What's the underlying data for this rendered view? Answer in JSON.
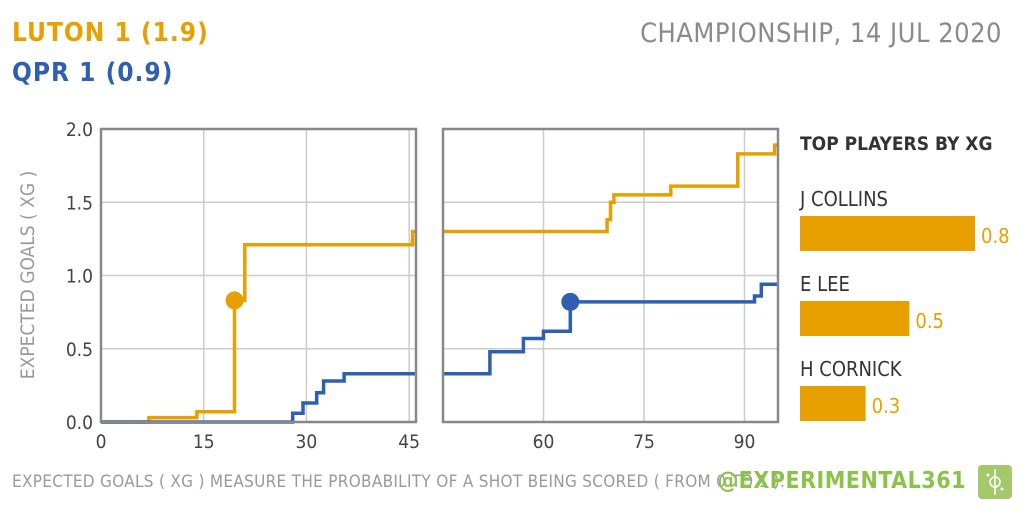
{
  "header": {
    "home": "LUTON 1 (1.9)",
    "away": "QPR 1 (0.9)",
    "match": "CHAMPIONSHIP, 14 JUL 2020"
  },
  "footer": {
    "note": "EXPECTED GOALS ( XG ) MEASURE THE PROBABILITY OF A SHOT BEING SCORED ( FROM 0 TO 1 ).",
    "brand": "@EXPERIMENTAL361"
  },
  "colors": {
    "home": "#e8a000",
    "away": "#2f5fb3",
    "grid": "#cccccc",
    "frame": "#888888"
  },
  "chart_data": {
    "type": "line",
    "ylabel": "EXPECTED GOALS ( XG )",
    "ylim": [
      0,
      2
    ],
    "y_ticks": [
      "0.0",
      "0.5",
      "1.0",
      "1.5",
      "2.0"
    ],
    "first_half": {
      "xlim": [
        0,
        46
      ],
      "x_ticks": [
        0,
        15,
        30,
        45
      ]
    },
    "second_half": {
      "xlim": [
        45,
        95
      ],
      "x_ticks": [
        60,
        75,
        90
      ]
    },
    "series": [
      {
        "name": "LUTON",
        "color": "#e8a000",
        "first_half": [
          [
            0,
            0
          ],
          [
            7,
            0
          ],
          [
            7,
            0.03
          ],
          [
            14,
            0.03
          ],
          [
            14,
            0.07
          ],
          [
            19.5,
            0.07
          ],
          [
            19.5,
            0.83
          ],
          [
            21,
            0.83
          ],
          [
            21,
            1.21
          ],
          [
            45.5,
            1.21
          ],
          [
            45.5,
            1.3
          ],
          [
            46,
            1.3
          ]
        ],
        "second_half": [
          [
            45,
            1.3
          ],
          [
            69.5,
            1.3
          ],
          [
            69.5,
            1.38
          ],
          [
            70,
            1.38
          ],
          [
            70,
            1.5
          ],
          [
            70.5,
            1.5
          ],
          [
            70.5,
            1.55
          ],
          [
            79,
            1.55
          ],
          [
            79,
            1.61
          ],
          [
            89,
            1.61
          ],
          [
            89,
            1.83
          ],
          [
            94.5,
            1.83
          ],
          [
            94.5,
            1.89
          ],
          [
            95,
            1.89
          ]
        ],
        "goals": [
          {
            "half": "first",
            "x": 19.5,
            "y": 0.83
          }
        ]
      },
      {
        "name": "QPR",
        "color": "#2f5fb3",
        "first_half": [
          [
            0,
            0
          ],
          [
            28,
            0
          ],
          [
            28,
            0.06
          ],
          [
            29.5,
            0.06
          ],
          [
            29.5,
            0.13
          ],
          [
            31.5,
            0.13
          ],
          [
            31.5,
            0.2
          ],
          [
            32.5,
            0.2
          ],
          [
            32.5,
            0.28
          ],
          [
            35.5,
            0.28
          ],
          [
            35.5,
            0.33
          ],
          [
            46,
            0.33
          ]
        ],
        "second_half": [
          [
            45,
            0.33
          ],
          [
            52,
            0.33
          ],
          [
            52,
            0.48
          ],
          [
            57,
            0.48
          ],
          [
            57,
            0.57
          ],
          [
            60,
            0.57
          ],
          [
            60,
            0.62
          ],
          [
            64,
            0.62
          ],
          [
            64,
            0.82
          ],
          [
            91.5,
            0.82
          ],
          [
            91.5,
            0.86
          ],
          [
            92.5,
            0.86
          ],
          [
            92.5,
            0.94
          ],
          [
            95,
            0.94
          ]
        ],
        "goals": [
          {
            "half": "second",
            "x": 64,
            "y": 0.82
          }
        ]
      }
    ],
    "top_players": {
      "title": "TOP PLAYERS BY XG",
      "max": 0.8,
      "players": [
        {
          "name": "J COLLINS",
          "xg": 0.8,
          "label": "0.8"
        },
        {
          "name": "E LEE",
          "xg": 0.5,
          "label": "0.5"
        },
        {
          "name": "H CORNICK",
          "xg": 0.3,
          "label": "0.3"
        }
      ]
    }
  }
}
